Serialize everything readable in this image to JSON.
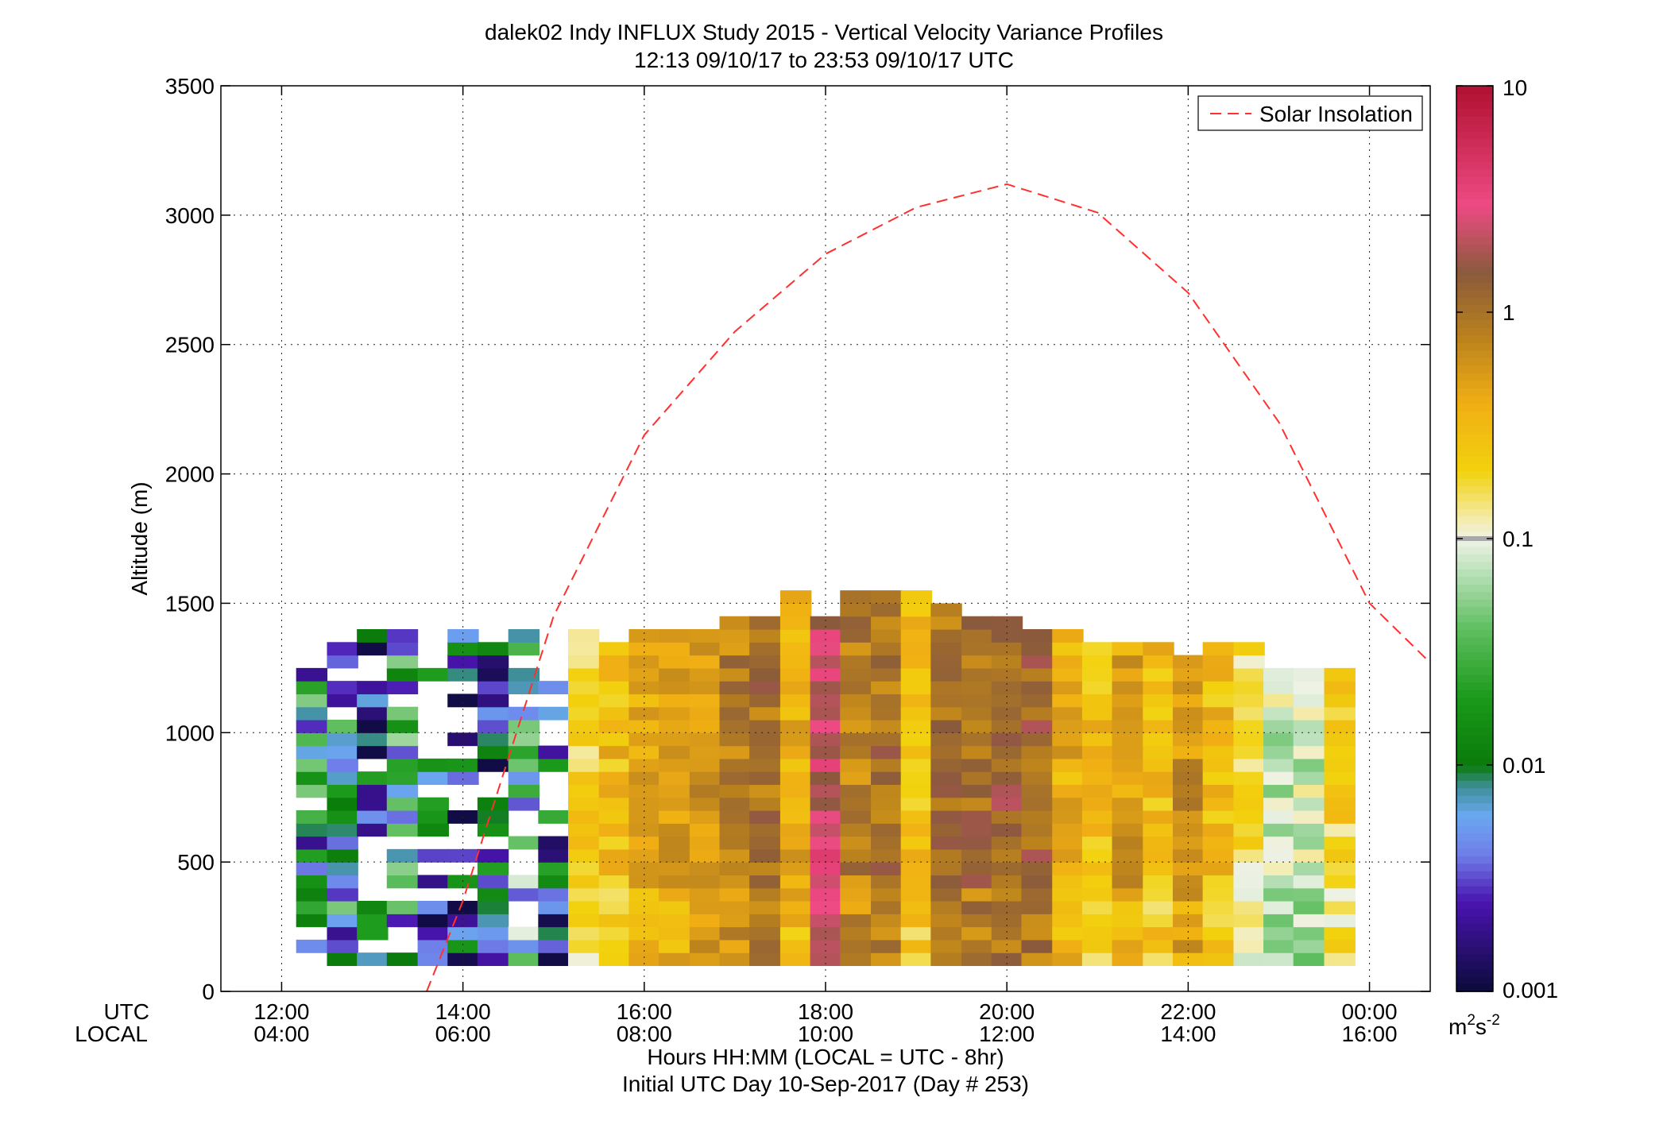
{
  "chart_data": {
    "type": "heatmap",
    "title_lines": [
      "dalek02 Indy INFLUX Study 2015 - Vertical Velocity Variance Profiles",
      "12:13 09/10/17 to 23:53 09/10/17  UTC"
    ],
    "ylabel": "Altitude (m)",
    "xlabel_lines": [
      "Hours HH:MM  (LOCAL = UTC - 8hr)",
      "Initial UTC Day 10-Sep-2017 (Day # 253)"
    ],
    "x_axis_row_labels": [
      "UTC",
      "LOCAL"
    ],
    "ylim": [
      0,
      3500
    ],
    "yticks": [
      0,
      500,
      1000,
      1500,
      2000,
      2500,
      3000,
      3500
    ],
    "xlim_hours_utc": [
      11.33,
      24.67
    ],
    "xticks_utc_hours": [
      12,
      14,
      16,
      18,
      20,
      22,
      24
    ],
    "xtick_utc_labels": [
      "12:00",
      "14:00",
      "16:00",
      "18:00",
      "20:00",
      "22:00",
      "00:00"
    ],
    "xtick_local_labels": [
      "04:00",
      "06:00",
      "08:00",
      "10:00",
      "12:00",
      "14:00",
      "16:00"
    ],
    "grid": true,
    "legend": {
      "position": "top-right",
      "entries": [
        "Solar Insolation"
      ]
    },
    "colorbar": {
      "scale": "log",
      "range": [
        0.001,
        10
      ],
      "ticks": [
        0.001,
        0.01,
        0.1,
        1,
        10
      ],
      "tick_labels": [
        "0.001",
        "0.01",
        "0.1",
        "1",
        "10"
      ],
      "unit": "m²s⁻²",
      "unit_parts": [
        "m",
        "2",
        "s",
        "-2"
      ]
    },
    "colormap": [
      [
        0.001,
        "#0b0b3a"
      ],
      [
        0.0025,
        "#4a14b0"
      ],
      [
        0.004,
        "#6f7ee8"
      ],
      [
        0.006,
        "#6aa8f0"
      ],
      [
        0.008,
        "#3f8f9a"
      ],
      [
        0.01,
        "#0a7a0a"
      ],
      [
        0.02,
        "#1b9a1b"
      ],
      [
        0.04,
        "#5fbe5f"
      ],
      [
        0.07,
        "#b6dfb6"
      ],
      [
        0.1,
        "#eef2e6"
      ],
      [
        0.12,
        "#f4ecb0"
      ],
      [
        0.2,
        "#f2d20e"
      ],
      [
        0.4,
        "#f0ae14"
      ],
      [
        0.8,
        "#b8801e"
      ],
      [
        1.5,
        "#8a5a3c"
      ],
      [
        3,
        "#ee4a84"
      ],
      [
        10,
        "#b01030"
      ]
    ],
    "heatmap": {
      "x_unit": "hours UTC",
      "y_unit": "m",
      "column_hours_utc": [
        12.33,
        12.67,
        13.0,
        13.33,
        13.67,
        14.0,
        14.33,
        14.67,
        15.0,
        15.33,
        15.67,
        16.0,
        16.33,
        16.67,
        17.0,
        17.33,
        17.67,
        18.0,
        18.33,
        18.67,
        19.0,
        19.33,
        19.67,
        20.0,
        20.33,
        20.67,
        21.0,
        21.33,
        21.67,
        22.0,
        22.33,
        22.67,
        23.0,
        23.33,
        23.67
      ],
      "row_altitudes_m": [
        100,
        1550
      ],
      "note_values": "variance in m^2 s^-2, estimated from colour",
      "column_top_altitude_m": [
        1300,
        1350,
        1400,
        1400,
        1400,
        1400,
        1350,
        1400,
        1350,
        1400,
        1350,
        1400,
        1400,
        1400,
        1450,
        1450,
        1550,
        1450,
        1550,
        1550,
        1550,
        1500,
        1450,
        1450,
        1400,
        1400,
        1350,
        1350,
        1350,
        1300,
        1350,
        1350,
        1250,
        1250,
        1250
      ],
      "column_typical_variance": [
        0.01,
        0.01,
        0.005,
        0.01,
        0.004,
        0.003,
        0.004,
        0.02,
        0.005,
        0.2,
        0.3,
        0.4,
        0.5,
        0.6,
        0.8,
        1.0,
        0.4,
        2.5,
        0.8,
        1.0,
        0.3,
        1.0,
        1.1,
        1.3,
        1.2,
        0.4,
        0.3,
        0.5,
        0.3,
        0.6,
        0.3,
        0.15,
        0.08,
        0.08,
        0.2
      ]
    },
    "solar_insolation": {
      "style": "dashed",
      "color": "#ff3030",
      "x_hours_utc": [
        13.6,
        14.0,
        15.0,
        16.0,
        17.0,
        18.0,
        19.0,
        20.0,
        21.0,
        22.0,
        23.0,
        24.0,
        24.67
      ],
      "y_altitude_m": [
        0,
        350,
        1450,
        2150,
        2550,
        2850,
        3030,
        3120,
        3010,
        2700,
        2200,
        1500,
        1270
      ]
    }
  }
}
